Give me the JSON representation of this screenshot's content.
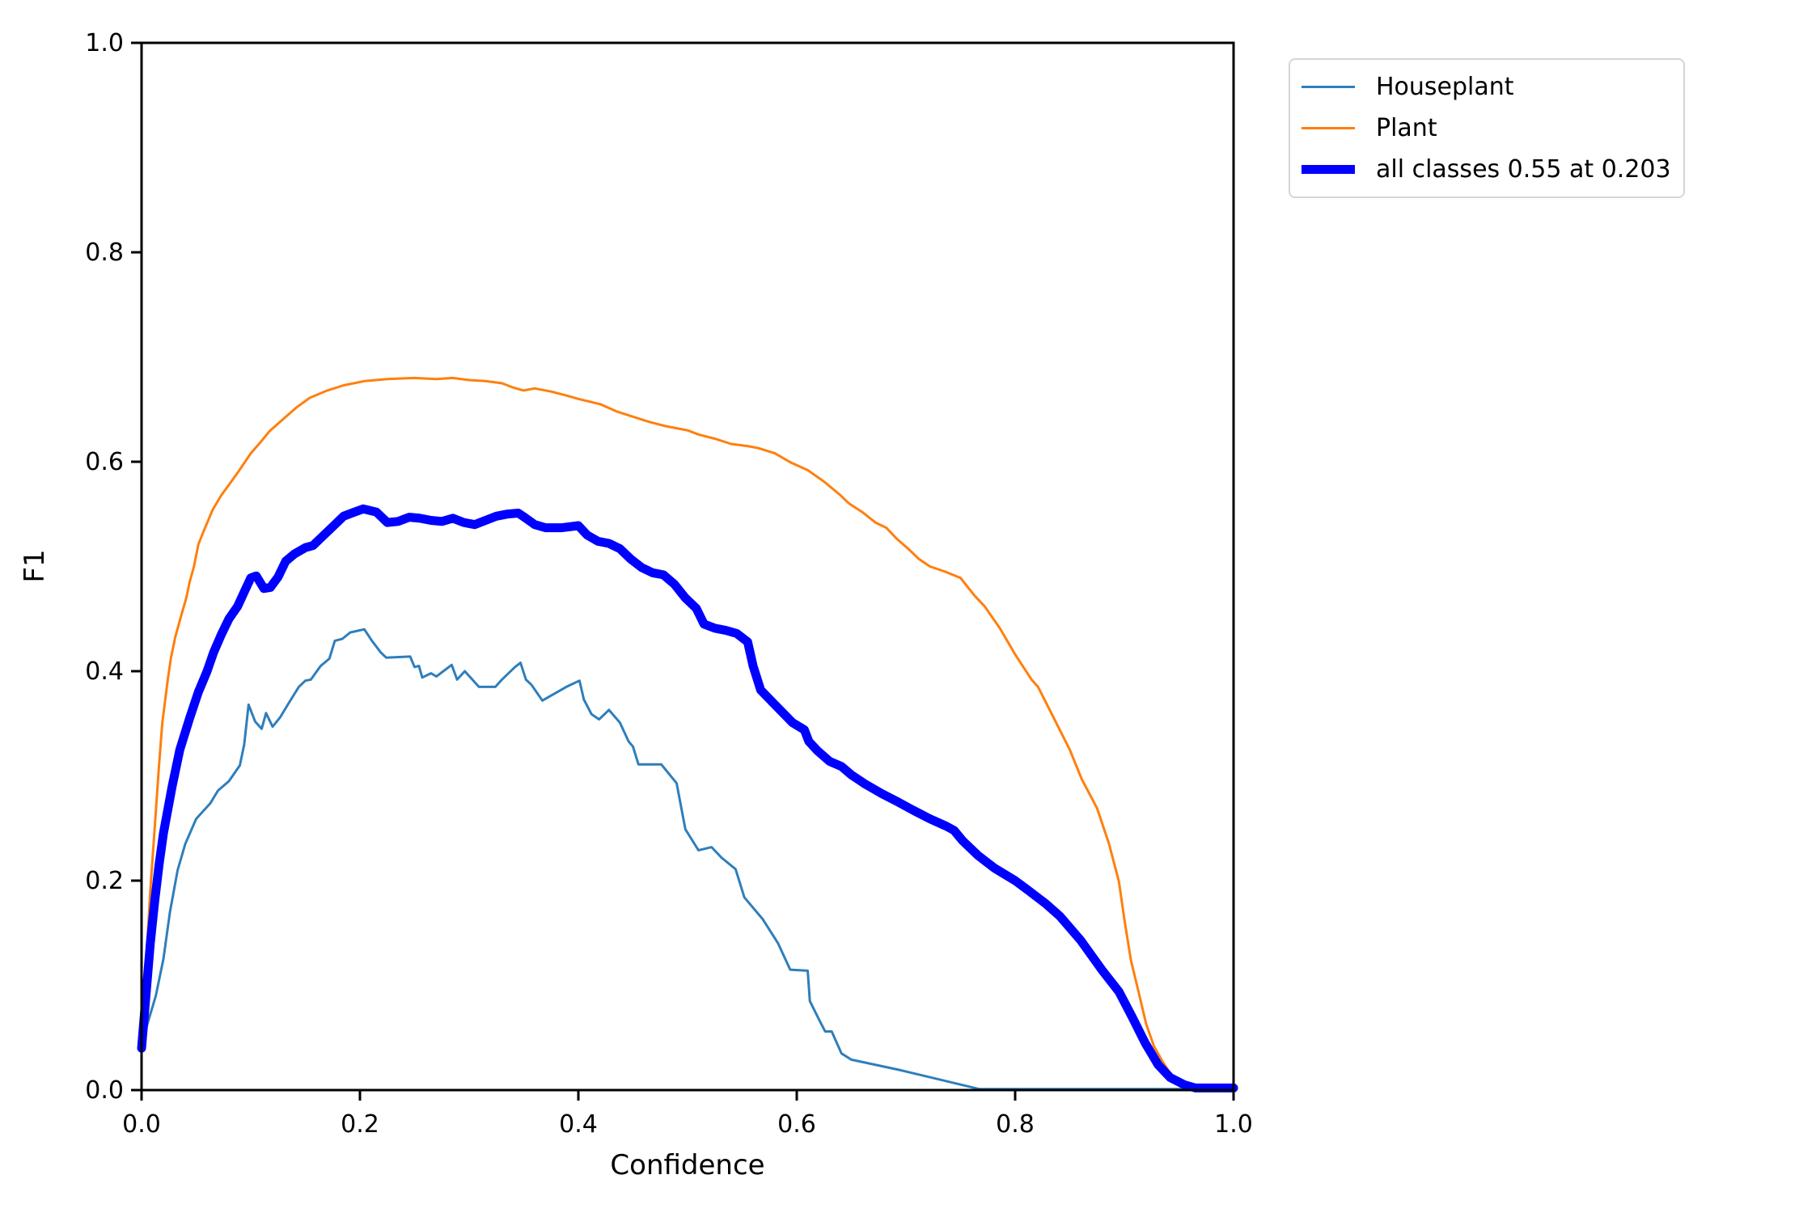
{
  "chart_data": {
    "type": "line",
    "title": "",
    "xlabel": "Confidence",
    "ylabel": "F1",
    "xlim": [
      0.0,
      1.0
    ],
    "ylim": [
      0.0,
      1.0
    ],
    "x_ticks": [
      0.0,
      0.2,
      0.4,
      0.6,
      0.8,
      1.0
    ],
    "y_ticks": [
      0.0,
      0.2,
      0.4,
      0.6,
      0.8,
      1.0
    ],
    "grid": false,
    "legend_position": "outside-top-right",
    "best": {
      "f1": 0.55,
      "confidence": 0.203
    },
    "series": [
      {
        "name": "Houseplant",
        "color": "#2e7ebc",
        "line_width": 3,
        "points": [
          [
            0.0,
            0.04
          ],
          [
            0.005,
            0.062
          ],
          [
            0.013,
            0.09
          ],
          [
            0.02,
            0.125
          ],
          [
            0.026,
            0.17
          ],
          [
            0.033,
            0.21
          ],
          [
            0.04,
            0.235
          ],
          [
            0.05,
            0.259
          ],
          [
            0.063,
            0.274
          ],
          [
            0.07,
            0.286
          ],
          [
            0.08,
            0.295
          ],
          [
            0.09,
            0.31
          ],
          [
            0.094,
            0.33
          ],
          [
            0.098,
            0.368
          ],
          [
            0.104,
            0.352
          ],
          [
            0.11,
            0.345
          ],
          [
            0.114,
            0.36
          ],
          [
            0.12,
            0.347
          ],
          [
            0.127,
            0.356
          ],
          [
            0.135,
            0.37
          ],
          [
            0.144,
            0.385
          ],
          [
            0.15,
            0.391
          ],
          [
            0.155,
            0.392
          ],
          [
            0.164,
            0.405
          ],
          [
            0.172,
            0.412
          ],
          [
            0.177,
            0.429
          ],
          [
            0.184,
            0.431
          ],
          [
            0.191,
            0.437
          ],
          [
            0.204,
            0.44
          ],
          [
            0.211,
            0.429
          ],
          [
            0.219,
            0.418
          ],
          [
            0.224,
            0.413
          ],
          [
            0.246,
            0.414
          ],
          [
            0.25,
            0.404
          ],
          [
            0.254,
            0.405
          ],
          [
            0.257,
            0.394
          ],
          [
            0.265,
            0.398
          ],
          [
            0.27,
            0.395
          ],
          [
            0.284,
            0.406
          ],
          [
            0.289,
            0.392
          ],
          [
            0.296,
            0.4
          ],
          [
            0.309,
            0.385
          ],
          [
            0.324,
            0.385
          ],
          [
            0.33,
            0.392
          ],
          [
            0.342,
            0.404
          ],
          [
            0.347,
            0.408
          ],
          [
            0.352,
            0.392
          ],
          [
            0.357,
            0.387
          ],
          [
            0.367,
            0.372
          ],
          [
            0.389,
            0.385
          ],
          [
            0.401,
            0.391
          ],
          [
            0.405,
            0.373
          ],
          [
            0.412,
            0.359
          ],
          [
            0.419,
            0.354
          ],
          [
            0.428,
            0.363
          ],
          [
            0.438,
            0.351
          ],
          [
            0.446,
            0.333
          ],
          [
            0.45,
            0.328
          ],
          [
            0.455,
            0.311
          ],
          [
            0.476,
            0.311
          ],
          [
            0.49,
            0.293
          ],
          [
            0.498,
            0.249
          ],
          [
            0.51,
            0.229
          ],
          [
            0.522,
            0.232
          ],
          [
            0.531,
            0.222
          ],
          [
            0.544,
            0.211
          ],
          [
            0.552,
            0.184
          ],
          [
            0.569,
            0.163
          ],
          [
            0.583,
            0.14
          ],
          [
            0.594,
            0.115
          ],
          [
            0.61,
            0.114
          ],
          [
            0.612,
            0.085
          ],
          [
            0.621,
            0.066
          ],
          [
            0.626,
            0.056
          ],
          [
            0.632,
            0.056
          ],
          [
            0.641,
            0.035
          ],
          [
            0.65,
            0.029
          ],
          [
            0.695,
            0.019
          ],
          [
            0.767,
            0.001
          ],
          [
            1.0,
            0.001
          ]
        ]
      },
      {
        "name": "Plant",
        "color": "#ff7f0e",
        "line_width": 3,
        "points": [
          [
            0.0,
            0.04
          ],
          [
            0.004,
            0.12
          ],
          [
            0.008,
            0.19
          ],
          [
            0.012,
            0.25
          ],
          [
            0.016,
            0.31
          ],
          [
            0.019,
            0.351
          ],
          [
            0.024,
            0.392
          ],
          [
            0.027,
            0.413
          ],
          [
            0.031,
            0.433
          ],
          [
            0.036,
            0.452
          ],
          [
            0.041,
            0.47
          ],
          [
            0.044,
            0.485
          ],
          [
            0.048,
            0.5
          ],
          [
            0.052,
            0.521
          ],
          [
            0.057,
            0.534
          ],
          [
            0.065,
            0.554
          ],
          [
            0.073,
            0.568
          ],
          [
            0.08,
            0.578
          ],
          [
            0.089,
            0.591
          ],
          [
            0.1,
            0.608
          ],
          [
            0.11,
            0.62
          ],
          [
            0.117,
            0.629
          ],
          [
            0.13,
            0.641
          ],
          [
            0.142,
            0.652
          ],
          [
            0.154,
            0.661
          ],
          [
            0.17,
            0.668
          ],
          [
            0.185,
            0.673
          ],
          [
            0.204,
            0.677
          ],
          [
            0.225,
            0.679
          ],
          [
            0.25,
            0.68
          ],
          [
            0.27,
            0.679
          ],
          [
            0.285,
            0.68
          ],
          [
            0.3,
            0.678
          ],
          [
            0.315,
            0.677
          ],
          [
            0.33,
            0.675
          ],
          [
            0.34,
            0.671
          ],
          [
            0.35,
            0.668
          ],
          [
            0.36,
            0.67
          ],
          [
            0.375,
            0.667
          ],
          [
            0.39,
            0.663
          ],
          [
            0.4,
            0.66
          ],
          [
            0.42,
            0.655
          ],
          [
            0.435,
            0.648
          ],
          [
            0.45,
            0.643
          ],
          [
            0.465,
            0.638
          ],
          [
            0.48,
            0.634
          ],
          [
            0.5,
            0.63
          ],
          [
            0.51,
            0.626
          ],
          [
            0.525,
            0.622
          ],
          [
            0.54,
            0.617
          ],
          [
            0.555,
            0.615
          ],
          [
            0.565,
            0.613
          ],
          [
            0.58,
            0.608
          ],
          [
            0.595,
            0.599
          ],
          [
            0.61,
            0.592
          ],
          [
            0.625,
            0.581
          ],
          [
            0.64,
            0.568
          ],
          [
            0.648,
            0.56
          ],
          [
            0.66,
            0.552
          ],
          [
            0.672,
            0.542
          ],
          [
            0.682,
            0.537
          ],
          [
            0.692,
            0.526
          ],
          [
            0.702,
            0.517
          ],
          [
            0.712,
            0.507
          ],
          [
            0.722,
            0.5
          ],
          [
            0.736,
            0.495
          ],
          [
            0.75,
            0.489
          ],
          [
            0.763,
            0.472
          ],
          [
            0.772,
            0.462
          ],
          [
            0.786,
            0.441
          ],
          [
            0.8,
            0.416
          ],
          [
            0.815,
            0.392
          ],
          [
            0.821,
            0.385
          ],
          [
            0.836,
            0.354
          ],
          [
            0.85,
            0.325
          ],
          [
            0.861,
            0.297
          ],
          [
            0.875,
            0.269
          ],
          [
            0.886,
            0.235
          ],
          [
            0.895,
            0.199
          ],
          [
            0.9,
            0.163
          ],
          [
            0.906,
            0.124
          ],
          [
            0.913,
            0.094
          ],
          [
            0.92,
            0.063
          ],
          [
            0.927,
            0.042
          ],
          [
            0.935,
            0.027
          ],
          [
            0.942,
            0.016
          ],
          [
            0.952,
            0.008
          ],
          [
            0.965,
            0.002
          ],
          [
            1.0,
            0.001
          ]
        ]
      },
      {
        "name": "all classes 0.55 at 0.203",
        "color": "#0000ff",
        "line_width": 11,
        "points": [
          [
            0.0,
            0.04
          ],
          [
            0.004,
            0.09
          ],
          [
            0.008,
            0.14
          ],
          [
            0.012,
            0.18
          ],
          [
            0.016,
            0.215
          ],
          [
            0.02,
            0.245
          ],
          [
            0.028,
            0.29
          ],
          [
            0.035,
            0.325
          ],
          [
            0.044,
            0.355
          ],
          [
            0.052,
            0.38
          ],
          [
            0.06,
            0.4
          ],
          [
            0.066,
            0.418
          ],
          [
            0.073,
            0.435
          ],
          [
            0.08,
            0.45
          ],
          [
            0.088,
            0.462
          ],
          [
            0.095,
            0.478
          ],
          [
            0.1,
            0.489
          ],
          [
            0.105,
            0.491
          ],
          [
            0.112,
            0.479
          ],
          [
            0.118,
            0.48
          ],
          [
            0.125,
            0.49
          ],
          [
            0.132,
            0.505
          ],
          [
            0.14,
            0.512
          ],
          [
            0.15,
            0.518
          ],
          [
            0.157,
            0.52
          ],
          [
            0.165,
            0.528
          ],
          [
            0.175,
            0.538
          ],
          [
            0.185,
            0.548
          ],
          [
            0.195,
            0.552
          ],
          [
            0.203,
            0.555
          ],
          [
            0.215,
            0.552
          ],
          [
            0.225,
            0.542
          ],
          [
            0.235,
            0.543
          ],
          [
            0.245,
            0.547
          ],
          [
            0.255,
            0.546
          ],
          [
            0.265,
            0.544
          ],
          [
            0.275,
            0.543
          ],
          [
            0.285,
            0.546
          ],
          [
            0.295,
            0.542
          ],
          [
            0.305,
            0.54
          ],
          [
            0.315,
            0.544
          ],
          [
            0.325,
            0.548
          ],
          [
            0.335,
            0.55
          ],
          [
            0.345,
            0.551
          ],
          [
            0.352,
            0.546
          ],
          [
            0.36,
            0.54
          ],
          [
            0.37,
            0.537
          ],
          [
            0.385,
            0.537
          ],
          [
            0.4,
            0.539
          ],
          [
            0.408,
            0.53
          ],
          [
            0.418,
            0.524
          ],
          [
            0.428,
            0.522
          ],
          [
            0.438,
            0.517
          ],
          [
            0.448,
            0.507
          ],
          [
            0.458,
            0.499
          ],
          [
            0.468,
            0.494
          ],
          [
            0.478,
            0.492
          ],
          [
            0.488,
            0.483
          ],
          [
            0.498,
            0.47
          ],
          [
            0.508,
            0.46
          ],
          [
            0.515,
            0.445
          ],
          [
            0.525,
            0.441
          ],
          [
            0.535,
            0.439
          ],
          [
            0.545,
            0.436
          ],
          [
            0.555,
            0.428
          ],
          [
            0.56,
            0.405
          ],
          [
            0.567,
            0.382
          ],
          [
            0.58,
            0.368
          ],
          [
            0.596,
            0.351
          ],
          [
            0.607,
            0.344
          ],
          [
            0.611,
            0.333
          ],
          [
            0.619,
            0.324
          ],
          [
            0.63,
            0.314
          ],
          [
            0.641,
            0.309
          ],
          [
            0.65,
            0.301
          ],
          [
            0.663,
            0.292
          ],
          [
            0.678,
            0.283
          ],
          [
            0.693,
            0.275
          ],
          [
            0.707,
            0.267
          ],
          [
            0.722,
            0.259
          ],
          [
            0.737,
            0.252
          ],
          [
            0.744,
            0.248
          ],
          [
            0.752,
            0.238
          ],
          [
            0.766,
            0.224
          ],
          [
            0.781,
            0.212
          ],
          [
            0.8,
            0.2
          ],
          [
            0.813,
            0.19
          ],
          [
            0.828,
            0.178
          ],
          [
            0.841,
            0.166
          ],
          [
            0.86,
            0.143
          ],
          [
            0.88,
            0.114
          ],
          [
            0.895,
            0.094
          ],
          [
            0.907,
            0.07
          ],
          [
            0.919,
            0.045
          ],
          [
            0.931,
            0.024
          ],
          [
            0.942,
            0.012
          ],
          [
            0.955,
            0.005
          ],
          [
            0.965,
            0.002
          ],
          [
            1.0,
            0.002
          ]
        ]
      }
    ]
  }
}
